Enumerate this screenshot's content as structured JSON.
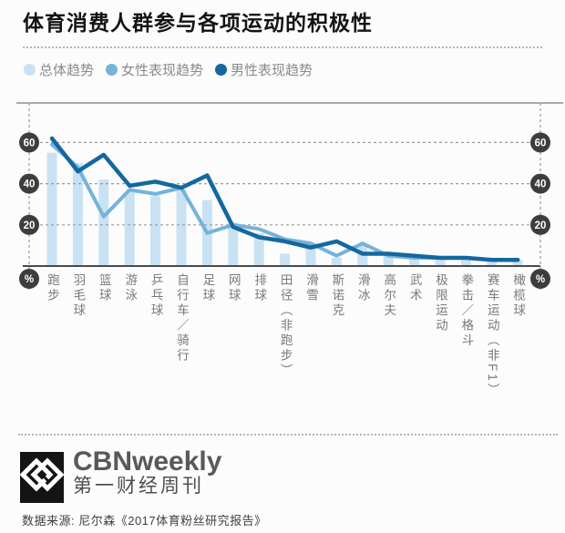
{
  "header": {
    "title": "体育消费人群参与各项运动的积极性"
  },
  "legend": [
    {
      "name": "overall",
      "label": "总体趋势",
      "color": "#c9e2f3"
    },
    {
      "name": "female",
      "label": "女性表现趋势",
      "color": "#74b3da"
    },
    {
      "name": "male",
      "label": "男性表现趋势",
      "color": "#15679f"
    }
  ],
  "chart_data": {
    "type": "bar",
    "subtype": "bars with two trend lines",
    "title": "体育消费人群参与各项运动的积极性",
    "xlabel": "",
    "ylabel": "%",
    "y_unit_label": "%",
    "y_ticks": [
      20,
      40,
      60
    ],
    "ylim": [
      0,
      80
    ],
    "grid": "dashed horizontal, dashed vertical frame at both sides, tick badges on both sides",
    "tick_badge_color": "#3d3d3d",
    "axis_color": "#4a4a4a",
    "categories": [
      "跑步",
      "羽毛球",
      "篮球",
      "游泳",
      "乒乓球",
      "自行车／骑行",
      "足球",
      "网球",
      "排球",
      "田径（非跑步）",
      "滑雪",
      "斯诺克",
      "滑冰",
      "高尔夫",
      "武术",
      "极限运动",
      "拳击／格斗",
      "赛车运动（非F1）",
      "橄榄球"
    ],
    "series": [
      {
        "name": "总体趋势",
        "type": "bar",
        "color": "#c9e2f3",
        "values": [
          55,
          50,
          42,
          36,
          34,
          37,
          32,
          21,
          16,
          6,
          11,
          4,
          10,
          5,
          4,
          4,
          3,
          3,
          3
        ]
      },
      {
        "name": "女性表现趋势",
        "type": "line",
        "color": "#74b3da",
        "values": [
          59,
          48,
          24,
          37,
          35,
          38,
          16,
          20,
          18,
          13,
          11,
          5,
          11,
          5,
          4,
          4,
          4,
          3,
          3
        ]
      },
      {
        "name": "男性表现趋势",
        "type": "line",
        "color": "#15679f",
        "values": [
          62,
          46,
          54,
          39,
          41,
          38,
          44,
          19,
          14,
          12,
          9,
          12,
          6,
          6,
          5,
          4,
          4,
          3,
          3
        ]
      }
    ],
    "legend_position": "top-left above plot"
  },
  "footer": {
    "logo_text": "CBNweekly",
    "logo_subtext": "第一财经周刊",
    "source": "数据来源: 尼尔森《2017体育粉丝研究报告》"
  }
}
